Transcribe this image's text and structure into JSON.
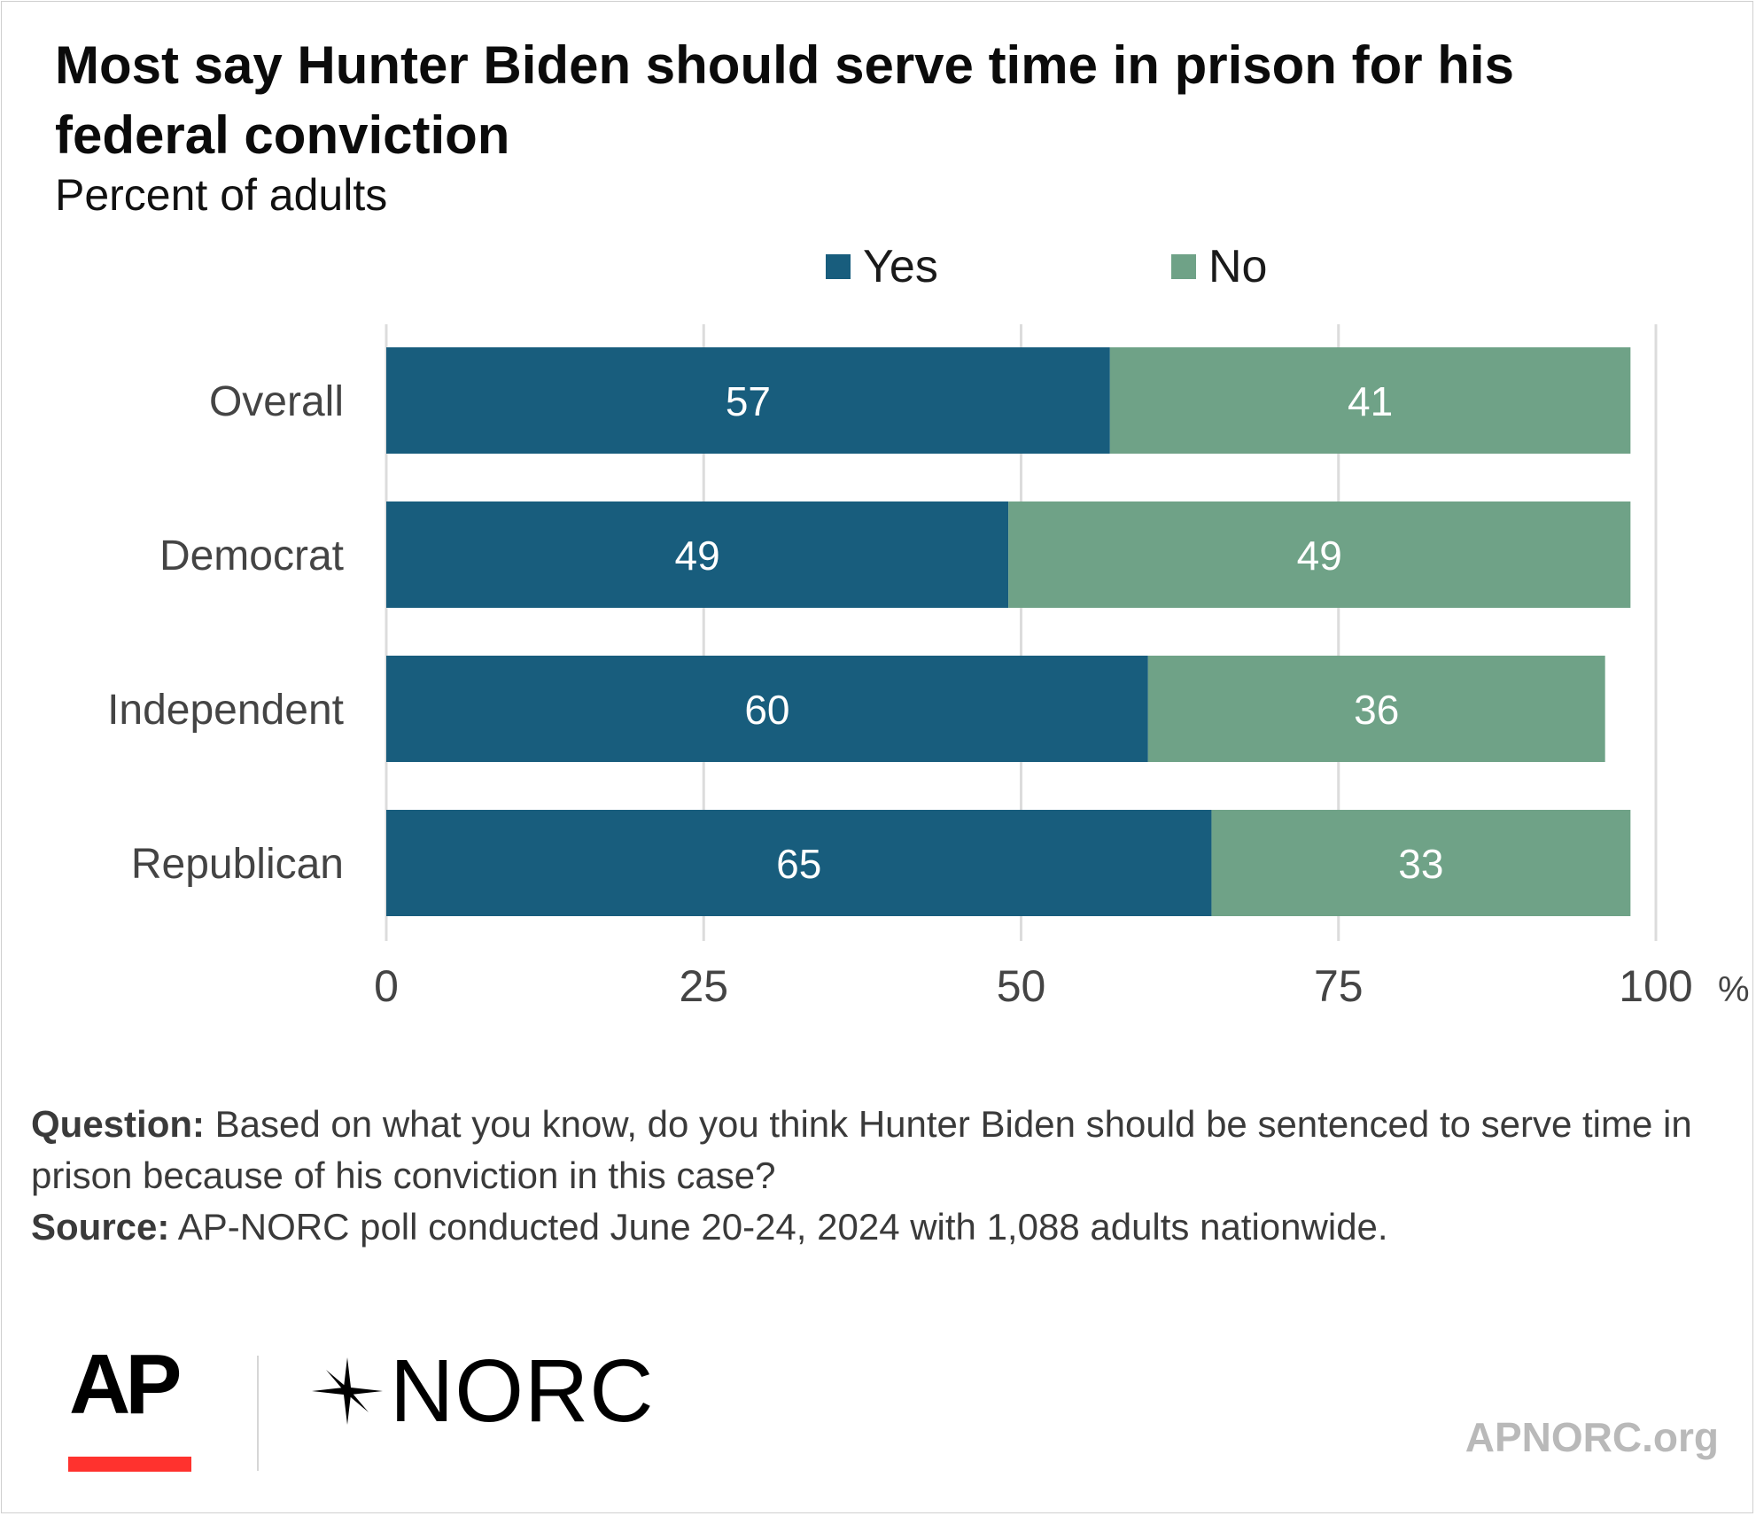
{
  "header": {
    "title": "Most say Hunter Biden should serve time in prison for his federal conviction",
    "subtitle": "Percent of adults"
  },
  "legend": [
    {
      "label": "Yes",
      "color": "#185d7d"
    },
    {
      "label": "No",
      "color": "#6fa287"
    }
  ],
  "chart_data": {
    "type": "bar",
    "orientation": "horizontal",
    "stacked": true,
    "categories": [
      "Overall",
      "Democrat",
      "Independent",
      "Republican"
    ],
    "series": [
      {
        "name": "Yes",
        "values": [
          57,
          49,
          60,
          65
        ],
        "color": "#185d7d"
      },
      {
        "name": "No",
        "values": [
          41,
          49,
          36,
          33
        ],
        "color": "#6fa287"
      }
    ],
    "xlim": [
      0,
      100
    ],
    "xticks": [
      0,
      25,
      50,
      75,
      100
    ],
    "x_unit": "%",
    "grid": true,
    "legend_position": "top"
  },
  "notes": {
    "question_label": "Question:",
    "question_text": "Based on what you know, do you think Hunter Biden should be sentenced to serve time in prison because of his conviction in this case?",
    "source_label": "Source:",
    "source_text": "AP-NORC poll conducted June 20-24, 2024 with 1,088 adults nationwide."
  },
  "footer": {
    "ap_logo_text": "AP",
    "norc_logo_text": "NORC",
    "website": "APNORC.org"
  }
}
